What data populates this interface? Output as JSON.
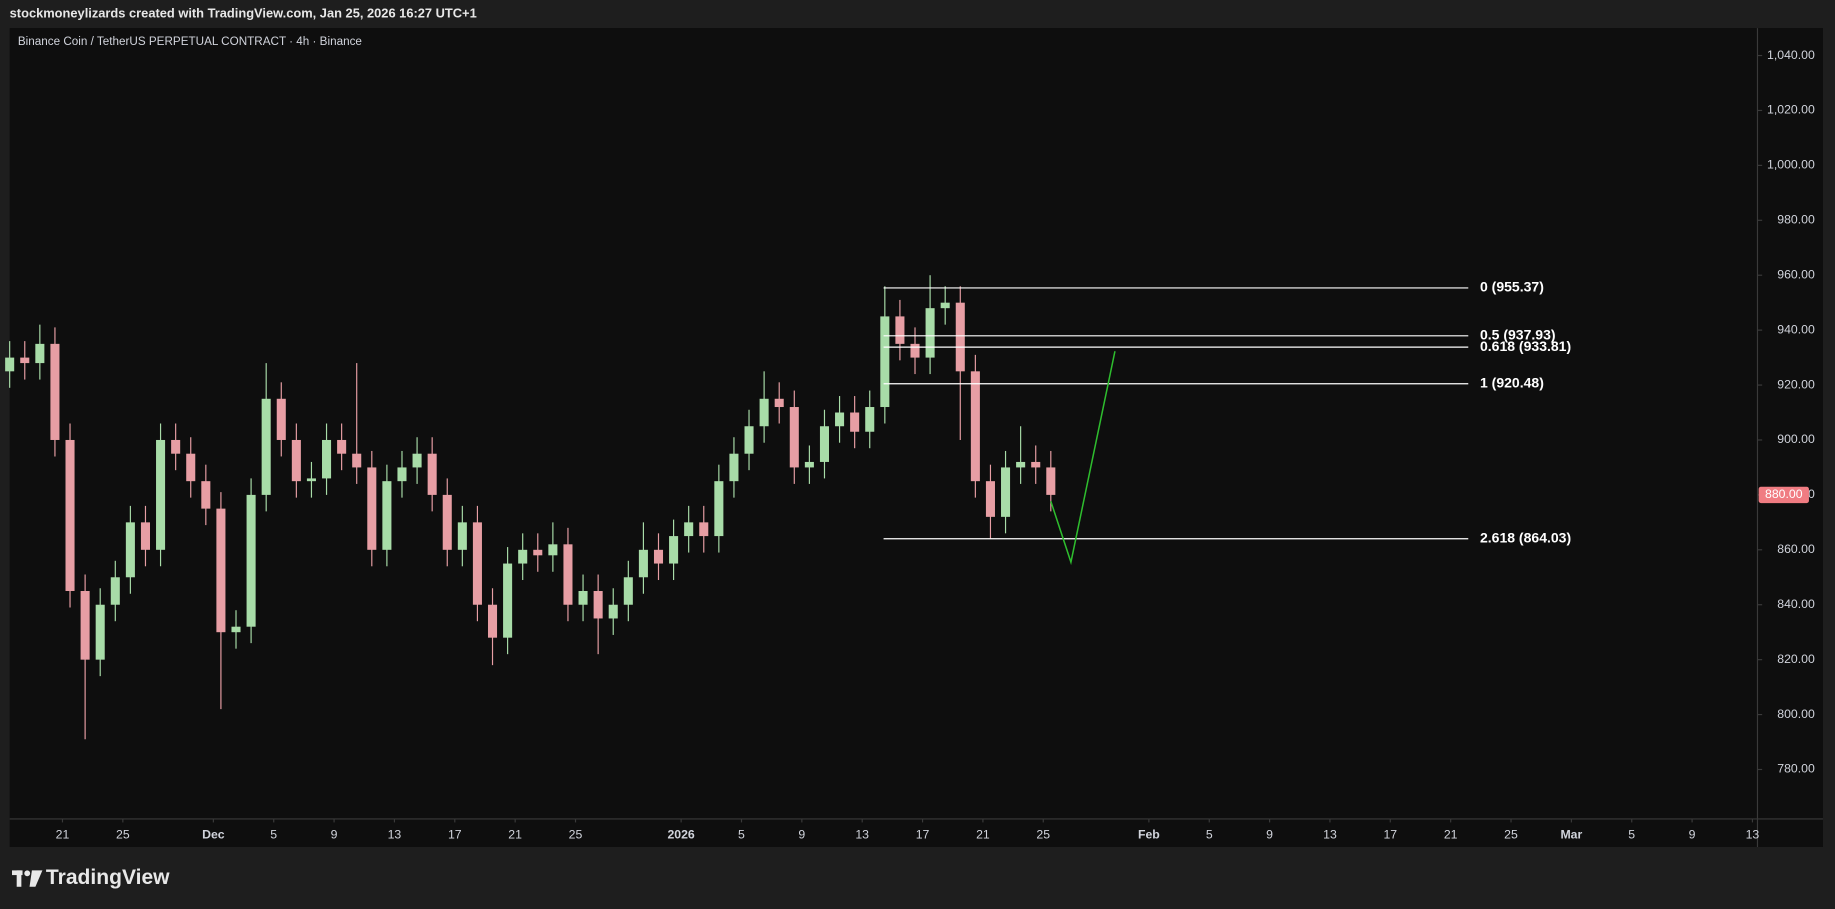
{
  "chart_data": {
    "type": "candlestick",
    "title": "stockmoneylizards created with TradingView.com, Jan 25, 2026 16:27 UTC+1",
    "subtitle": "Binance Coin / TetherUS PERPETUAL CONTRACT · 4h · Binance",
    "up_color": "#a8dca8",
    "down_color": "#e79ea4",
    "x": [
      "2025-11-17",
      "2025-11-18",
      "2025-11-19",
      "2025-11-20",
      "2025-11-21",
      "2025-11-22",
      "2025-11-23",
      "2025-11-24",
      "2025-11-25",
      "2025-11-26",
      "2025-11-27",
      "2025-11-28",
      "2025-11-29",
      "2025-11-30",
      "2025-12-01",
      "2025-12-02",
      "2025-12-03",
      "2025-12-04",
      "2025-12-05",
      "2025-12-06",
      "2025-12-07",
      "2025-12-08",
      "2025-12-09",
      "2025-12-10",
      "2025-12-11",
      "2025-12-12",
      "2025-12-13",
      "2025-12-14",
      "2025-12-15",
      "2025-12-16",
      "2025-12-17",
      "2025-12-18",
      "2025-12-19",
      "2025-12-20",
      "2025-12-21",
      "2025-12-22",
      "2025-12-23",
      "2025-12-24",
      "2025-12-25",
      "2025-12-26",
      "2025-12-27",
      "2025-12-28",
      "2025-12-29",
      "2025-12-30",
      "2025-12-31",
      "2026-01-01",
      "2026-01-02",
      "2026-01-03",
      "2026-01-04",
      "2026-01-05",
      "2026-01-06",
      "2026-01-07",
      "2026-01-08",
      "2026-01-09",
      "2026-01-10",
      "2026-01-11",
      "2026-01-12",
      "2026-01-13",
      "2026-01-14",
      "2026-01-15",
      "2026-01-16",
      "2026-01-17",
      "2026-01-18",
      "2026-01-19",
      "2026-01-20",
      "2026-01-21",
      "2026-01-22",
      "2026-01-23",
      "2026-01-24",
      "2026-01-25"
    ],
    "open": [
      925,
      930,
      928,
      935,
      900,
      845,
      820,
      840,
      850,
      870,
      860,
      900,
      895,
      885,
      875,
      830,
      832,
      880,
      915,
      900,
      885,
      886,
      900,
      895,
      890,
      860,
      885,
      890,
      895,
      880,
      860,
      870,
      840,
      828,
      855,
      860,
      858,
      862,
      840,
      845,
      835,
      840,
      850,
      860,
      855,
      865,
      870,
      865,
      885,
      895,
      905,
      915,
      912,
      890,
      892,
      905,
      910,
      903,
      912,
      945,
      935,
      930,
      948,
      950,
      925,
      885,
      872,
      890,
      892,
      890
    ],
    "high": [
      936,
      936,
      942,
      941,
      906,
      851,
      846,
      856,
      876,
      876,
      906,
      906,
      901,
      891,
      881,
      838,
      886,
      928,
      921,
      906,
      892,
      906,
      906,
      928,
      896,
      891,
      896,
      901,
      901,
      886,
      876,
      876,
      846,
      861,
      866,
      866,
      870,
      868,
      851,
      851,
      846,
      856,
      870,
      866,
      871,
      876,
      876,
      891,
      901,
      911,
      925,
      921,
      918,
      898,
      911,
      916,
      916,
      918,
      956,
      951,
      941,
      960,
      956,
      956,
      931,
      891,
      896,
      905,
      898,
      896
    ],
    "low": [
      919,
      922,
      922,
      894,
      839,
      791,
      814,
      834,
      844,
      854,
      854,
      889,
      879,
      869,
      802,
      824,
      826,
      874,
      894,
      879,
      879,
      880,
      889,
      884,
      854,
      854,
      879,
      884,
      874,
      854,
      854,
      834,
      818,
      822,
      849,
      852,
      852,
      834,
      834,
      822,
      829,
      834,
      844,
      849,
      849,
      859,
      859,
      859,
      879,
      889,
      899,
      906,
      884,
      884,
      886,
      899,
      897,
      897,
      906,
      929,
      924,
      924,
      942,
      900,
      879,
      864,
      866,
      884,
      884,
      874
    ],
    "close": [
      930,
      928,
      935,
      900,
      845,
      820,
      840,
      850,
      870,
      860,
      900,
      895,
      885,
      875,
      830,
      832,
      880,
      915,
      900,
      885,
      886,
      900,
      895,
      890,
      860,
      885,
      890,
      895,
      880,
      860,
      870,
      840,
      828,
      855,
      860,
      858,
      862,
      840,
      845,
      835,
      840,
      850,
      860,
      855,
      865,
      870,
      865,
      885,
      895,
      905,
      915,
      912,
      890,
      892,
      905,
      910,
      903,
      912,
      945,
      935,
      930,
      948,
      950,
      925,
      885,
      872,
      890,
      892,
      890,
      880
    ],
    "xlim": [
      "2025-11-17T12:00",
      "2026-03-13T08:00"
    ],
    "xticks": [
      {
        "value": "2025-11-21",
        "label": "21"
      },
      {
        "value": "2025-11-25",
        "label": "25"
      },
      {
        "value": "2025-12-01",
        "label": "Dec"
      },
      {
        "value": "2025-12-05",
        "label": "5"
      },
      {
        "value": "2025-12-09",
        "label": "9"
      },
      {
        "value": "2025-12-13",
        "label": "13"
      },
      {
        "value": "2025-12-17",
        "label": "17"
      },
      {
        "value": "2025-12-21",
        "label": "21"
      },
      {
        "value": "2025-12-25",
        "label": "25"
      },
      {
        "value": "2026-01-01",
        "label": "2026"
      },
      {
        "value": "2026-01-05",
        "label": "5"
      },
      {
        "value": "2026-01-09",
        "label": "9"
      },
      {
        "value": "2026-01-13",
        "label": "13"
      },
      {
        "value": "2026-01-17",
        "label": "17"
      },
      {
        "value": "2026-01-21",
        "label": "21"
      },
      {
        "value": "2026-01-25",
        "label": "25"
      },
      {
        "value": "2026-02-01",
        "label": "Feb"
      },
      {
        "value": "2026-02-05",
        "label": "5"
      },
      {
        "value": "2026-02-09",
        "label": "9"
      },
      {
        "value": "2026-02-13",
        "label": "13"
      },
      {
        "value": "2026-02-17",
        "label": "17"
      },
      {
        "value": "2026-02-21",
        "label": "21"
      },
      {
        "value": "2026-02-25",
        "label": "25"
      },
      {
        "value": "2026-03-01",
        "label": "Mar"
      },
      {
        "value": "2026-03-05",
        "label": "5"
      },
      {
        "value": "2026-03-09",
        "label": "9"
      },
      {
        "value": "2026-03-13",
        "label": "13"
      }
    ],
    "ylim": [
      762,
      1050
    ],
    "yticks": [
      {
        "value": 780,
        "label": "780.00"
      },
      {
        "value": 800,
        "label": "800.00"
      },
      {
        "value": 820,
        "label": "820.00"
      },
      {
        "value": 840,
        "label": "840.00"
      },
      {
        "value": 860,
        "label": "860.00"
      },
      {
        "value": 880,
        "label": "880.00"
      },
      {
        "value": 900,
        "label": "900.00"
      },
      {
        "value": 920,
        "label": "920.00"
      },
      {
        "value": 940,
        "label": "940.00"
      },
      {
        "value": 960,
        "label": "960.00"
      },
      {
        "value": 980,
        "label": "980.00"
      },
      {
        "value": 1000,
        "label": "1,000.00"
      },
      {
        "value": 1020,
        "label": "1,020.00"
      },
      {
        "value": 1040,
        "label": "1,040.00"
      }
    ],
    "grid": false,
    "last_price": {
      "value": 880,
      "label": "880.00",
      "color": "#f07c82"
    },
    "fib_x": [
      "2026-01-14T10:00",
      "2026-02-22T04:00"
    ],
    "fib_color": "#ffffff",
    "fib_levels": [
      {
        "value": 955.37,
        "label": "0 (955.37)"
      },
      {
        "value": 937.93,
        "label": "0.5 (937.93)"
      },
      {
        "value": 933.81,
        "label": "0.618 (933.81)"
      },
      {
        "value": 920.48,
        "label": "1 (920.48)"
      },
      {
        "value": 864.03,
        "label": "2.618 (864.03)"
      }
    ],
    "projection": {
      "color": "#2ebd2e",
      "x": [
        "2026-01-25T12:00",
        "2026-01-26T20:00",
        "2026-01-29T18:00"
      ],
      "values": [
        877.7,
        855.5,
        932.3
      ]
    }
  },
  "footer": {
    "brand": "TradingView"
  }
}
